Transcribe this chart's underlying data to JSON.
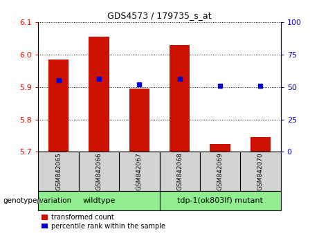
{
  "title": "GDS4573 / 179735_s_at",
  "samples": [
    "GSM842065",
    "GSM842066",
    "GSM842067",
    "GSM842068",
    "GSM842069",
    "GSM842070"
  ],
  "bar_values": [
    5.985,
    6.055,
    5.895,
    6.03,
    5.725,
    5.745
  ],
  "bar_base": 5.7,
  "percentile_values": [
    55,
    56,
    52,
    56,
    51,
    51
  ],
  "ylim_left": [
    5.7,
    6.1
  ],
  "ylim_right": [
    0,
    100
  ],
  "yticks_left": [
    5.7,
    5.8,
    5.9,
    6.0,
    6.1
  ],
  "yticks_right": [
    0,
    25,
    50,
    75,
    100
  ],
  "bar_color": "#cc1100",
  "percentile_color": "#0000cc",
  "wildtype_label": "wildtype",
  "mutant_label": "tdp-1(ok803lf) mutant",
  "genotype_label": "genotype/variation",
  "legend_bar_label": "transformed count",
  "legend_pct_label": "percentile rank within the sample",
  "group_color": "#90ee90",
  "sample_box_color": "#d3d3d3",
  "tick_label_color_left": "#cc1100",
  "tick_label_color_right": "#0000cc",
  "bar_width": 0.5,
  "title_fontsize": 9,
  "tick_fontsize": 8,
  "sample_fontsize": 6.5,
  "group_fontsize": 8,
  "legend_fontsize": 7,
  "genotype_fontsize": 7.5
}
